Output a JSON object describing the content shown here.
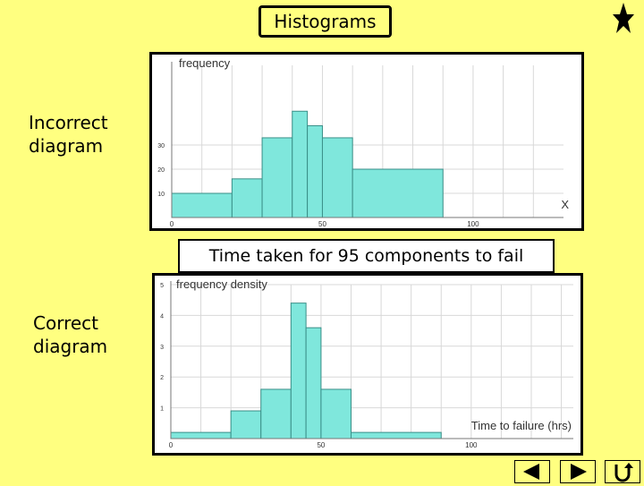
{
  "header": {
    "title": "Histograms"
  },
  "labels": {
    "incorrect": [
      "Incorrect",
      "diagram"
    ],
    "correct": [
      "Correct",
      "diagram"
    ]
  },
  "caption": "Time taken for 95 components to fail",
  "chart_data": [
    {
      "type": "bar",
      "ylabel": "frequency",
      "xlabel": "X",
      "x_ticks": [
        "0",
        "50",
        "100"
      ],
      "y_ticks": [
        "10",
        "20",
        "30"
      ],
      "bins": [
        {
          "start": 0,
          "end": 20,
          "value": 10
        },
        {
          "start": 20,
          "end": 30,
          "value": 16
        },
        {
          "start": 30,
          "end": 40,
          "value": 33
        },
        {
          "start": 40,
          "end": 45,
          "value": 44
        },
        {
          "start": 45,
          "end": 50,
          "value": 38
        },
        {
          "start": 50,
          "end": 60,
          "value": 33
        },
        {
          "start": 60,
          "end": 90,
          "value": 20
        }
      ],
      "xlim": [
        0,
        130
      ],
      "ylim": [
        0,
        63
      ],
      "grid": true,
      "bar_color": "#7fe7dc"
    },
    {
      "type": "bar",
      "ylabel": "frequency density",
      "xlabel": "Time to failure (hrs)",
      "x_ticks": [
        "0",
        "50",
        "100"
      ],
      "y_ticks": [
        "1",
        "2",
        "3",
        "4",
        "5"
      ],
      "bins": [
        {
          "start": 0,
          "end": 20,
          "value": 0.2
        },
        {
          "start": 20,
          "end": 30,
          "value": 0.9
        },
        {
          "start": 30,
          "end": 40,
          "value": 1.6
        },
        {
          "start": 40,
          "end": 45,
          "value": 4.4
        },
        {
          "start": 45,
          "end": 50,
          "value": 3.6
        },
        {
          "start": 50,
          "end": 60,
          "value": 1.6
        },
        {
          "start": 60,
          "end": 90,
          "value": 0.2
        }
      ],
      "xlim": [
        0,
        134
      ],
      "ylim": [
        0,
        5
      ],
      "grid": true,
      "bar_color": "#7fe7dc"
    }
  ],
  "nav": {
    "prev_icon": "triangle-left-icon",
    "next_icon": "triangle-right-icon",
    "return_icon": "u-turn-icon"
  }
}
